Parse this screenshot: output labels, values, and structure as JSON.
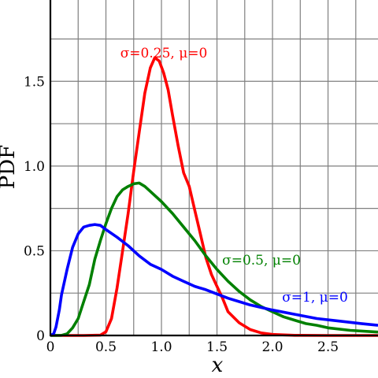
{
  "chart_data": {
    "type": "line",
    "title": "",
    "xlabel": "x",
    "ylabel": "PDF",
    "xlim": [
      0,
      2.95
    ],
    "ylim": [
      0,
      1.98
    ],
    "grid": true,
    "legend": "inline labels near curves",
    "x_ticks": [
      "0",
      "0.5",
      "1.0",
      "1.5",
      "2.0",
      "2.5"
    ],
    "x_tick_values": [
      0,
      0.5,
      1.0,
      1.5,
      2.0,
      2.5
    ],
    "y_ticks": [
      "0",
      "0.5",
      "1.0",
      "1.5"
    ],
    "y_tick_values": [
      0,
      0.5,
      1.0,
      1.5
    ],
    "series": [
      {
        "name": "σ=0.25, μ=0",
        "color": "#ff0000",
        "points": [
          [
            0,
            0
          ],
          [
            0.3,
            0
          ],
          [
            0.45,
            0.002
          ],
          [
            0.5,
            0.022
          ],
          [
            0.55,
            0.1
          ],
          [
            0.6,
            0.28
          ],
          [
            0.65,
            0.5
          ],
          [
            0.7,
            0.72
          ],
          [
            0.75,
            0.97
          ],
          [
            0.8,
            1.2
          ],
          [
            0.85,
            1.43
          ],
          [
            0.9,
            1.58
          ],
          [
            0.94,
            1.64
          ],
          [
            0.98,
            1.62
          ],
          [
            1.02,
            1.55
          ],
          [
            1.06,
            1.45
          ],
          [
            1.1,
            1.3
          ],
          [
            1.15,
            1.12
          ],
          [
            1.2,
            0.96
          ],
          [
            1.25,
            0.88
          ],
          [
            1.3,
            0.74
          ],
          [
            1.35,
            0.6
          ],
          [
            1.4,
            0.46
          ],
          [
            1.45,
            0.36
          ],
          [
            1.5,
            0.29
          ],
          [
            1.55,
            0.22
          ],
          [
            1.6,
            0.14
          ],
          [
            1.7,
            0.075
          ],
          [
            1.8,
            0.035
          ],
          [
            1.9,
            0.015
          ],
          [
            2.0,
            0.006
          ],
          [
            2.2,
            0.001
          ],
          [
            2.5,
            0
          ],
          [
            2.95,
            0
          ]
        ]
      },
      {
        "name": "σ=0.5, μ=0",
        "color": "#008000",
        "points": [
          [
            0,
            0
          ],
          [
            0.1,
            0.001
          ],
          [
            0.15,
            0.01
          ],
          [
            0.2,
            0.045
          ],
          [
            0.25,
            0.1
          ],
          [
            0.3,
            0.2
          ],
          [
            0.35,
            0.3
          ],
          [
            0.4,
            0.45
          ],
          [
            0.45,
            0.56
          ],
          [
            0.5,
            0.66
          ],
          [
            0.55,
            0.75
          ],
          [
            0.6,
            0.82
          ],
          [
            0.65,
            0.86
          ],
          [
            0.7,
            0.88
          ],
          [
            0.75,
            0.895
          ],
          [
            0.8,
            0.9
          ],
          [
            0.85,
            0.88
          ],
          [
            0.9,
            0.85
          ],
          [
            1.0,
            0.79
          ],
          [
            1.1,
            0.72
          ],
          [
            1.2,
            0.64
          ],
          [
            1.3,
            0.56
          ],
          [
            1.4,
            0.47
          ],
          [
            1.5,
            0.39
          ],
          [
            1.6,
            0.32
          ],
          [
            1.7,
            0.26
          ],
          [
            1.8,
            0.21
          ],
          [
            1.9,
            0.17
          ],
          [
            2.0,
            0.14
          ],
          [
            2.1,
            0.11
          ],
          [
            2.2,
            0.09
          ],
          [
            2.3,
            0.07
          ],
          [
            2.4,
            0.06
          ],
          [
            2.5,
            0.045
          ],
          [
            2.7,
            0.03
          ],
          [
            2.95,
            0.02
          ]
        ]
      },
      {
        "name": "σ=1, μ=0",
        "color": "#0000ff",
        "points": [
          [
            0,
            0
          ],
          [
            0.03,
            0.01
          ],
          [
            0.05,
            0.05
          ],
          [
            0.08,
            0.15
          ],
          [
            0.1,
            0.24
          ],
          [
            0.15,
            0.39
          ],
          [
            0.2,
            0.52
          ],
          [
            0.25,
            0.6
          ],
          [
            0.3,
            0.64
          ],
          [
            0.35,
            0.65
          ],
          [
            0.4,
            0.655
          ],
          [
            0.45,
            0.65
          ],
          [
            0.5,
            0.625
          ],
          [
            0.6,
            0.58
          ],
          [
            0.7,
            0.53
          ],
          [
            0.8,
            0.47
          ],
          [
            0.9,
            0.42
          ],
          [
            1.0,
            0.39
          ],
          [
            1.1,
            0.35
          ],
          [
            1.2,
            0.32
          ],
          [
            1.3,
            0.29
          ],
          [
            1.4,
            0.27
          ],
          [
            1.5,
            0.245
          ],
          [
            1.6,
            0.22
          ],
          [
            1.7,
            0.2
          ],
          [
            1.8,
            0.18
          ],
          [
            1.9,
            0.165
          ],
          [
            2.0,
            0.15
          ],
          [
            2.2,
            0.125
          ],
          [
            2.4,
            0.1
          ],
          [
            2.6,
            0.085
          ],
          [
            2.8,
            0.07
          ],
          [
            2.95,
            0.06
          ]
        ]
      }
    ]
  },
  "labels": {
    "red": "σ=0.25, μ=0",
    "green": "σ=0.5, μ=0",
    "blue": "σ=1, μ=0"
  }
}
